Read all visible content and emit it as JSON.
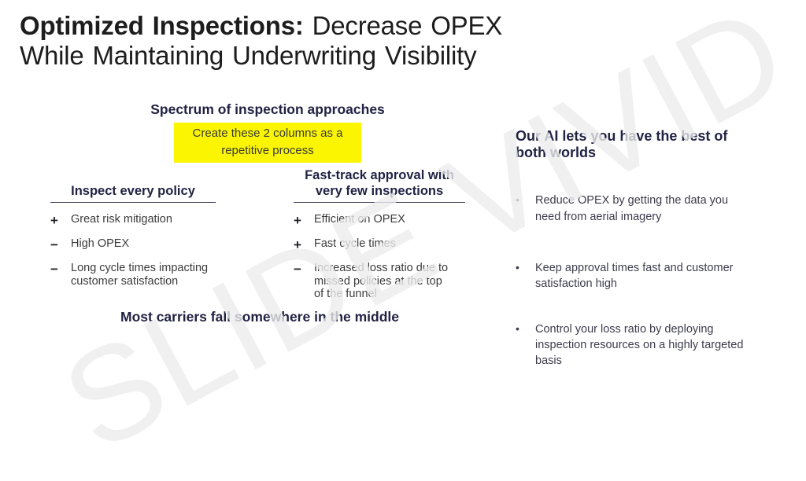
{
  "watermark": {
    "text": "SLIDE VIVID"
  },
  "title": {
    "lead_bold": "Optimized Inspections:",
    "lead_rest": " Decrease OPEX",
    "line2": "While Maintaining Underwriting Visibility"
  },
  "spectrum": {
    "heading": "Spectrum of inspection approaches",
    "sticky_note": {
      "lines": [
        "Create these 2 columns as a",
        "repetitive process"
      ]
    },
    "columns": [
      {
        "heading_lines": [
          "Inspect every policy"
        ],
        "items": [
          {
            "sign": "+",
            "lines": [
              "Great risk mitigation"
            ]
          },
          {
            "sign": "−",
            "lines": [
              "High OPEX"
            ]
          },
          {
            "sign": "−",
            "lines": [
              "Long cycle times impacting",
              "customer satisfaction"
            ]
          }
        ]
      },
      {
        "heading_lines": [
          "Fast-track approval with",
          "very few inspections"
        ],
        "items": [
          {
            "sign": "+",
            "lines": [
              "Efficient on OPEX"
            ]
          },
          {
            "sign": "+",
            "lines": [
              "Fast cycle times"
            ]
          },
          {
            "sign": "−",
            "lines": [
              "Increased loss ratio due to",
              "missed policies at the top",
              "of the funnel"
            ]
          }
        ]
      }
    ],
    "footer": "Most carriers fall somewhere in the middle"
  },
  "right_panel": {
    "heading_lines": [
      "Our AI lets you have the best of",
      "both worlds"
    ],
    "bullet_char": "•",
    "bullets": [
      {
        "lines": [
          "Reduce OPEX by getting the data you",
          "need from aerial imagery"
        ]
      },
      {
        "lines": [
          "Keep approval times fast and customer",
          "satisfaction high"
        ]
      },
      {
        "lines": [
          "Control your loss ratio by deploying",
          "inspection resources on a highly targeted",
          "basis"
        ]
      }
    ]
  },
  "colors": {
    "ink": "#1d1d1d",
    "navy": "#222244",
    "body-text": "#3b3b3b",
    "panel-text": "#3c3c4c",
    "highlight": "#fbf501",
    "underline": "#3f3f5a",
    "watermark": "#ededed"
  }
}
